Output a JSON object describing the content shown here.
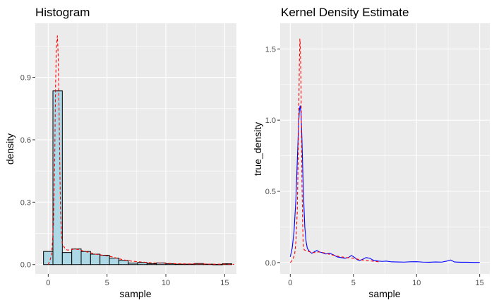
{
  "chart_data": [
    {
      "type": "bar",
      "title": "Histogram",
      "xlabel": "sample",
      "ylabel": "density",
      "xlim": [
        -1.1,
        16.0
      ],
      "ylim": [
        -0.045,
        1.16
      ],
      "x_ticks": [
        0,
        5,
        10,
        15
      ],
      "y_ticks": [
        0.0,
        0.3,
        0.6,
        0.9
      ],
      "x_tick_labels": [
        "0",
        "5",
        "10",
        "15"
      ],
      "y_tick_labels": [
        "0.0",
        "0.3",
        "0.6",
        "0.9"
      ],
      "grid": true,
      "bin_width": 0.8,
      "bar_fill": "#add8e6",
      "bar_stroke": "#000000",
      "bins": [
        {
          "x": 0.0,
          "value": 0.063
        },
        {
          "x": 0.8,
          "value": 0.835
        },
        {
          "x": 1.6,
          "value": 0.058
        },
        {
          "x": 2.4,
          "value": 0.075
        },
        {
          "x": 3.2,
          "value": 0.063
        },
        {
          "x": 4.0,
          "value": 0.05
        },
        {
          "x": 4.8,
          "value": 0.045
        },
        {
          "x": 5.6,
          "value": 0.031
        },
        {
          "x": 6.4,
          "value": 0.02
        },
        {
          "x": 7.2,
          "value": 0.007
        },
        {
          "x": 8.0,
          "value": 0.01
        },
        {
          "x": 8.8,
          "value": 0.004
        },
        {
          "x": 9.6,
          "value": 0.008
        },
        {
          "x": 10.4,
          "value": 0.004
        },
        {
          "x": 11.2,
          "value": 0.002
        },
        {
          "x": 12.0,
          "value": 0.002
        },
        {
          "x": 12.8,
          "value": 0.005
        },
        {
          "x": 13.6,
          "value": 0.002
        },
        {
          "x": 14.4,
          "value": 0.001
        },
        {
          "x": 15.2,
          "value": 0.004
        }
      ],
      "series": [
        {
          "color": "#ff0000",
          "dash": "dashed",
          "x": [
            0.0,
            0.15,
            0.3,
            0.45,
            0.55,
            0.62,
            0.7,
            0.78,
            0.85,
            0.92,
            1.0,
            1.05,
            1.12,
            1.2,
            1.3,
            1.4,
            1.6,
            1.9,
            2.2,
            2.6,
            3.0,
            3.5,
            4.0,
            4.5,
            5.0,
            5.5,
            6.0,
            6.5,
            7.0,
            8.0,
            9.0,
            10.0,
            11.0,
            12.0,
            13.0,
            14.0,
            15.0,
            15.8
          ],
          "y": [
            0.0,
            0.02,
            0.05,
            0.2,
            0.5,
            0.85,
            1.05,
            1.1,
            1.0,
            0.75,
            0.42,
            0.25,
            0.14,
            0.1,
            0.09,
            0.08,
            0.07,
            0.07,
            0.075,
            0.072,
            0.065,
            0.058,
            0.05,
            0.046,
            0.042,
            0.036,
            0.028,
            0.022,
            0.017,
            0.012,
            0.008,
            0.006,
            0.004,
            0.003,
            0.003,
            0.002,
            0.002,
            0.001
          ]
        }
      ]
    },
    {
      "type": "line",
      "title": "Kernel Density Estimate",
      "xlabel": "sample",
      "ylabel": "true_density",
      "xlim": [
        -0.8,
        15.8
      ],
      "ylim": [
        -0.08,
        1.68
      ],
      "x_ticks": [
        0,
        5,
        10,
        15
      ],
      "y_ticks": [
        0.0,
        0.5,
        1.0,
        1.5
      ],
      "x_tick_labels": [
        "0",
        "5",
        "10",
        "15"
      ],
      "y_tick_labels": [
        "0.0",
        "0.5",
        "1.0",
        "1.5"
      ],
      "grid": true,
      "series": [
        {
          "color": "#0000ff",
          "dash": "solid",
          "x": [
            0.0,
            0.15,
            0.3,
            0.45,
            0.55,
            0.65,
            0.72,
            0.78,
            0.85,
            0.92,
            1.0,
            1.08,
            1.15,
            1.25,
            1.35,
            1.5,
            1.7,
            1.9,
            2.1,
            2.3,
            2.5,
            2.8,
            3.1,
            3.4,
            3.7,
            4.0,
            4.3,
            4.6,
            4.85,
            5.1,
            5.3,
            5.5,
            5.8,
            6.0,
            6.3,
            6.6,
            7.0,
            7.3,
            7.6,
            8.0,
            8.5,
            9.0,
            9.5,
            10.0,
            10.5,
            11.0,
            11.5,
            12.0,
            12.4,
            12.7,
            13.0,
            13.5,
            14.0,
            14.5,
            15.0
          ],
          "y": [
            0.04,
            0.1,
            0.22,
            0.45,
            0.7,
            0.95,
            1.07,
            1.1,
            1.05,
            0.88,
            0.62,
            0.4,
            0.25,
            0.15,
            0.1,
            0.08,
            0.065,
            0.075,
            0.085,
            0.075,
            0.07,
            0.06,
            0.065,
            0.055,
            0.04,
            0.035,
            0.03,
            0.035,
            0.05,
            0.035,
            0.02,
            0.015,
            0.025,
            0.035,
            0.03,
            0.015,
            0.01,
            0.008,
            0.01,
            0.005,
            0.004,
            0.003,
            0.005,
            0.006,
            0.003,
            0.002,
            0.004,
            0.003,
            0.01,
            0.018,
            0.004,
            0.002,
            0.002,
            0.001,
            0.001
          ]
        },
        {
          "color": "#ff0000",
          "dash": "dashed",
          "x": [
            0.0,
            0.2,
            0.35,
            0.45,
            0.55,
            0.62,
            0.68,
            0.72,
            0.76,
            0.8,
            0.84,
            0.88,
            0.93,
            0.98,
            1.02,
            1.06,
            1.1,
            1.2,
            1.4,
            1.7,
            2.0,
            2.3,
            2.6,
            3.0,
            3.5,
            4.0,
            4.5,
            5.0,
            5.5,
            6.0,
            6.5,
            7.0
          ],
          "y": [
            0.0,
            0.02,
            0.06,
            0.15,
            0.35,
            0.7,
            1.1,
            1.4,
            1.57,
            1.52,
            1.3,
            0.95,
            0.55,
            0.28,
            0.14,
            0.1,
            0.09,
            0.085,
            0.08,
            0.07,
            0.07,
            0.075,
            0.07,
            0.06,
            0.05,
            0.04,
            0.035,
            0.03,
            0.02,
            0.015,
            0.01,
            0.005
          ]
        }
      ]
    }
  ]
}
